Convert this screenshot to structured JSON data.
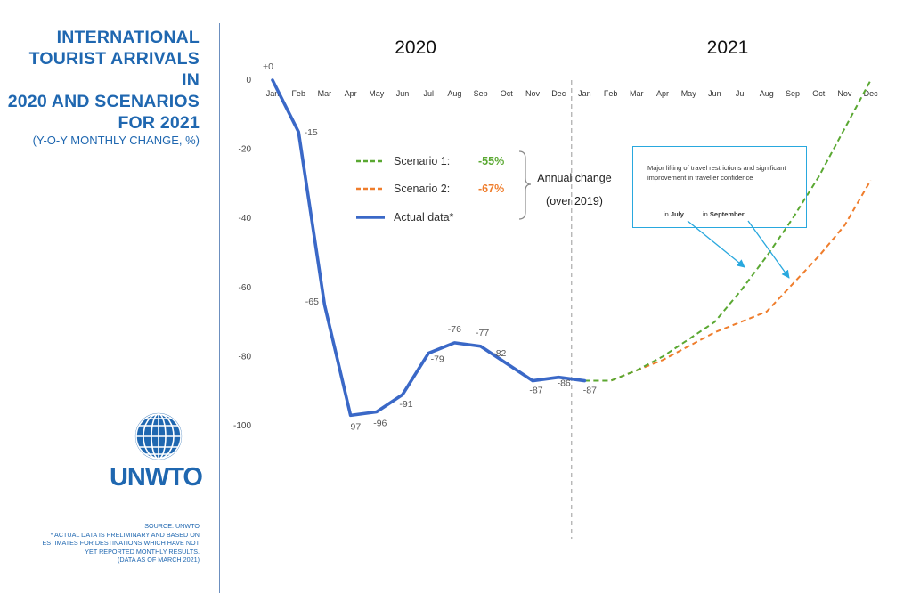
{
  "sidebar": {
    "title_lines": [
      "INTERNATIONAL",
      "TOURIST ARRIVALS IN",
      "2020 AND SCENARIOS",
      "FOR 2021"
    ],
    "subtitle": "(Y-O-Y MONTHLY CHANGE, %)",
    "logo_text": "UNWTO",
    "notes_lines": [
      "SOURCE: UNWTO",
      "* ACTUAL DATA IS PRELIMINARY AND BASED ON",
      "ESTIMATES FOR DESTINATIONS WHICH HAVE NOT",
      "YET REPORTED MONTHLY RESULTS.",
      "(DATA AS OF MARCH 2021)"
    ]
  },
  "callout": {
    "text": "Major lifting of travel restrictions and significant improvement in traveller confidence",
    "july_prefix": "in ",
    "july": "July",
    "sep_prefix": "in ",
    "sep": "September"
  },
  "colors": {
    "title": "#1f67b0",
    "actual": "#3a68c7",
    "scenario1": "#5aa832",
    "scenario2": "#ef7d2c",
    "callout_border": "#29a8de",
    "divider": "#9a9a9a"
  },
  "chart_data": {
    "type": "line",
    "year_labels": [
      "2020",
      "2021"
    ],
    "months": [
      "Jan",
      "Feb",
      "Mar",
      "Apr",
      "May",
      "Jun",
      "Jul",
      "Aug",
      "Sep",
      "Oct",
      "Nov",
      "Dec",
      "Jan",
      "Feb",
      "Mar",
      "Apr",
      "May",
      "Jun",
      "Jul",
      "Aug",
      "Sep",
      "Oct",
      "Nov",
      "Dec"
    ],
    "month_labels_display": [
      "Jan",
      "Feb",
      "Mar",
      "Apr",
      "May",
      "Jun",
      "Jul",
      "Aug",
      "Sep",
      "Oct",
      "Nov",
      "Dec",
      "Jan",
      "Feb",
      "Mar",
      "Apr",
      "May",
      "Jun",
      "Jul",
      "Aug",
      "Sep",
      "Oct",
      "Nov",
      "Dec"
    ],
    "y_ticks": [
      0,
      -20,
      -40,
      -60,
      -80,
      -100
    ],
    "y_tick_labels": [
      "0",
      "-20",
      "-40",
      "-60",
      "-80",
      "-100"
    ],
    "ylim": [
      -100,
      0
    ],
    "series": [
      {
        "name": "Actual data*",
        "style": "solid",
        "values": [
          0,
          -15,
          -65,
          -97,
          -96,
          -91,
          -79,
          -76,
          -77,
          -82,
          -87,
          -86,
          -87
        ],
        "labels": [
          "+0",
          "-15",
          "-65",
          "-97",
          "-96",
          "-91",
          "-79",
          "-76",
          "-77",
          "-82",
          "-87",
          "-86",
          "-87"
        ]
      },
      {
        "name": "Scenario 1:",
        "style": "dashed",
        "annual_change": "-55%",
        "x_start": 12,
        "values": [
          -87,
          -87,
          -84,
          -80,
          -75,
          -70,
          -61,
          -51,
          -40,
          -28,
          -14,
          0
        ]
      },
      {
        "name": "Scenario 2:",
        "style": "dashed",
        "annual_change": "-67%",
        "x_start": 12,
        "values": [
          -87,
          -87,
          -84,
          -81,
          -77,
          -73,
          -70,
          -67,
          -59,
          -51,
          -42,
          -29
        ]
      }
    ],
    "legend": {
      "position": "center",
      "bracket_label_1": "Annual change",
      "bracket_label_2": "(over 2019)"
    }
  }
}
